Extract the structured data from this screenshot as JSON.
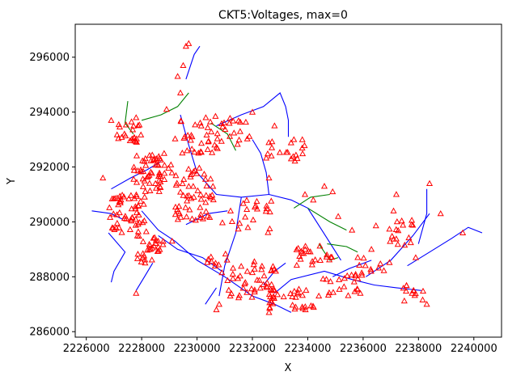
{
  "chart_data": {
    "type": "scatter",
    "title": "CKT5:Voltages, max=0",
    "xlabel": "X",
    "ylabel": "Y",
    "xlim": [
      2225600,
      2241000
    ],
    "ylim": [
      285800,
      297200
    ],
    "grid": false,
    "xticks": [
      {
        "value": 2226000,
        "label": "2226000"
      },
      {
        "value": 2228000,
        "label": "2228000"
      },
      {
        "value": 2230000,
        "label": "2230000"
      },
      {
        "value": 2232000,
        "label": "2232000"
      },
      {
        "value": 2234000,
        "label": "2234000"
      },
      {
        "value": 2236000,
        "label": "2236000"
      },
      {
        "value": 2238000,
        "label": "2238000"
      },
      {
        "value": 2240000,
        "label": "2240000"
      }
    ],
    "yticks": [
      {
        "value": 286000,
        "label": "286000"
      },
      {
        "value": 288000,
        "label": "288000"
      },
      {
        "value": 290000,
        "label": "290000"
      },
      {
        "value": 292000,
        "label": "292000"
      },
      {
        "value": 294000,
        "label": "294000"
      },
      {
        "value": 296000,
        "label": "296000"
      }
    ],
    "colors": {
      "feeder": "#0000ff",
      "lateral": "#008000",
      "marker": "#ff0000"
    },
    "lines": [
      {
        "series": "feeder",
        "points": [
          [
            2226900,
            291200
          ],
          [
            2227600,
            291600
          ],
          [
            2228200,
            291900
          ],
          [
            2228700,
            292200
          ]
        ]
      },
      {
        "series": "feeder",
        "points": [
          [
            2228000,
            290400
          ],
          [
            2228600,
            289700
          ],
          [
            2229200,
            289300
          ],
          [
            2230000,
            288600
          ],
          [
            2231000,
            288000
          ],
          [
            2232000,
            287300
          ],
          [
            2232800,
            287000
          ],
          [
            2233400,
            286700
          ]
        ]
      },
      {
        "series": "feeder",
        "points": [
          [
            2226200,
            290400
          ],
          [
            2226900,
            290300
          ],
          [
            2227300,
            290100
          ]
        ]
      },
      {
        "series": "feeder",
        "points": [
          [
            2226800,
            289600
          ],
          [
            2227400,
            288900
          ],
          [
            2227000,
            288200
          ],
          [
            2226900,
            287800
          ]
        ]
      },
      {
        "series": "feeder",
        "points": [
          [
            2229400,
            293900
          ],
          [
            2229700,
            292800
          ],
          [
            2230000,
            291800
          ],
          [
            2230700,
            291000
          ],
          [
            2231600,
            290900
          ],
          [
            2232600,
            291000
          ],
          [
            2233400,
            290800
          ],
          [
            2234000,
            290500
          ],
          [
            2234700,
            289400
          ],
          [
            2235200,
            288600
          ]
        ]
      },
      {
        "series": "feeder",
        "points": [
          [
            2229600,
            295200
          ],
          [
            2229900,
            296100
          ],
          [
            2230100,
            296400
          ]
        ]
      },
      {
        "series": "feeder",
        "points": [
          [
            2230700,
            293500
          ],
          [
            2231600,
            293900
          ],
          [
            2232400,
            294200
          ],
          [
            2233000,
            294700
          ],
          [
            2233200,
            294200
          ],
          [
            2233300,
            293700
          ],
          [
            2233300,
            293100
          ]
        ]
      },
      {
        "series": "feeder",
        "points": [
          [
            2232000,
            293000
          ],
          [
            2232300,
            292500
          ],
          [
            2232500,
            291800
          ],
          [
            2232600,
            291000
          ]
        ]
      },
      {
        "series": "feeder",
        "points": [
          [
            2231600,
            290900
          ],
          [
            2231400,
            289600
          ],
          [
            2231000,
            288400
          ],
          [
            2230800,
            287300
          ]
        ]
      },
      {
        "series": "feeder",
        "points": [
          [
            2232800,
            287400
          ],
          [
            2233400,
            287900
          ],
          [
            2234600,
            288200
          ],
          [
            2235600,
            287900
          ],
          [
            2236400,
            287700
          ],
          [
            2237200,
            287600
          ],
          [
            2238100,
            287500
          ]
        ]
      },
      {
        "series": "feeder",
        "points": [
          [
            2236100,
            288000
          ],
          [
            2237000,
            288600
          ],
          [
            2237800,
            289500
          ],
          [
            2238400,
            290300
          ]
        ]
      },
      {
        "series": "feeder",
        "points": [
          [
            2237600,
            288400
          ],
          [
            2238400,
            288900
          ],
          [
            2239200,
            289400
          ],
          [
            2239800,
            289800
          ],
          [
            2240300,
            289600
          ]
        ]
      },
      {
        "series": "feeder",
        "points": [
          [
            2238300,
            291200
          ],
          [
            2238300,
            290300
          ],
          [
            2238000,
            289200
          ]
        ]
      },
      {
        "series": "feeder",
        "points": [
          [
            2228600,
            289500
          ],
          [
            2229300,
            289000
          ],
          [
            2230200,
            288700
          ],
          [
            2230900,
            288200
          ]
        ]
      },
      {
        "series": "feeder",
        "points": [
          [
            2227800,
            287500
          ],
          [
            2228100,
            288000
          ],
          [
            2228400,
            288500
          ]
        ]
      },
      {
        "series": "feeder",
        "points": [
          [
            2229600,
            289900
          ],
          [
            2230400,
            290300
          ],
          [
            2231100,
            290400
          ]
        ]
      },
      {
        "series": "feeder",
        "points": [
          [
            2232400,
            287700
          ],
          [
            2232800,
            288200
          ],
          [
            2233200,
            288500
          ]
        ]
      },
      {
        "series": "feeder",
        "points": [
          [
            2234900,
            288000
          ],
          [
            2235500,
            288300
          ],
          [
            2236300,
            288600
          ]
        ]
      },
      {
        "series": "feeder",
        "points": [
          [
            2230300,
            287000
          ],
          [
            2230700,
            287600
          ]
        ]
      },
      {
        "series": "lateral",
        "points": [
          [
            2227500,
            294400
          ],
          [
            2227400,
            293600
          ],
          [
            2227700,
            293200
          ]
        ]
      },
      {
        "series": "lateral",
        "points": [
          [
            2228000,
            293700
          ],
          [
            2228700,
            293900
          ],
          [
            2229300,
            294200
          ],
          [
            2229700,
            294700
          ]
        ]
      },
      {
        "series": "lateral",
        "points": [
          [
            2233500,
            290500
          ],
          [
            2234100,
            290900
          ],
          [
            2234800,
            291000
          ]
        ]
      },
      {
        "series": "lateral",
        "points": [
          [
            2234000,
            290500
          ],
          [
            2234800,
            290000
          ],
          [
            2235400,
            289700
          ]
        ]
      },
      {
        "series": "lateral",
        "points": [
          [
            2234400,
            289200
          ],
          [
            2234800,
            288600
          ],
          [
            2235100,
            288700
          ]
        ]
      },
      {
        "series": "lateral",
        "points": [
          [
            2234700,
            289200
          ],
          [
            2235400,
            289100
          ],
          [
            2235800,
            288900
          ]
        ]
      },
      {
        "series": "lateral",
        "points": [
          [
            2230500,
            293600
          ],
          [
            2231100,
            293200
          ],
          [
            2231400,
            292600
          ]
        ]
      }
    ],
    "marker_clusters": [
      {
        "series": "marker",
        "center": [
          2227500,
          293200
        ],
        "spread": [
          500,
          450
        ],
        "count": 22
      },
      {
        "series": "marker",
        "center": [
          2228400,
          291800
        ],
        "spread": [
          700,
          700
        ],
        "count": 55
      },
      {
        "series": "marker",
        "center": [
          2227500,
          290300
        ],
        "spread": [
          700,
          700
        ],
        "count": 55
      },
      {
        "series": "marker",
        "center": [
          2228300,
          289000
        ],
        "spread": [
          500,
          500
        ],
        "count": 30
      },
      {
        "series": "marker",
        "center": [
          2229900,
          291000
        ],
        "spread": [
          700,
          1000
        ],
        "count": 55
      },
      {
        "series": "marker",
        "center": [
          2230000,
          293200
        ],
        "spread": [
          800,
          700
        ],
        "count": 35
      },
      {
        "series": "marker",
        "center": [
          2231400,
          293300
        ],
        "spread": [
          600,
          500
        ],
        "count": 18
      },
      {
        "series": "marker",
        "center": [
          2233100,
          292600
        ],
        "spread": [
          900,
          400
        ],
        "count": 18
      },
      {
        "series": "marker",
        "center": [
          2231800,
          290200
        ],
        "spread": [
          900,
          600
        ],
        "count": 22
      },
      {
        "series": "marker",
        "center": [
          2230700,
          288500
        ],
        "spread": [
          400,
          400
        ],
        "count": 10
      },
      {
        "series": "marker",
        "center": [
          2232000,
          287900
        ],
        "spread": [
          900,
          700
        ],
        "count": 45
      },
      {
        "series": "marker",
        "center": [
          2233500,
          287200
        ],
        "spread": [
          900,
          400
        ],
        "count": 30
      },
      {
        "series": "marker",
        "center": [
          2234200,
          288800
        ],
        "spread": [
          700,
          400
        ],
        "count": 22
      },
      {
        "series": "marker",
        "center": [
          2235200,
          287700
        ],
        "spread": [
          700,
          400
        ],
        "count": 18
      },
      {
        "series": "marker",
        "center": [
          2236400,
          288400
        ],
        "spread": [
          700,
          400
        ],
        "count": 14
      },
      {
        "series": "marker",
        "center": [
          2237100,
          289600
        ],
        "spread": [
          700,
          500
        ],
        "count": 18
      },
      {
        "series": "marker",
        "center": [
          2237800,
          287400
        ],
        "spread": [
          400,
          300
        ],
        "count": 12
      }
    ],
    "markers": [
      [
        2229600,
        296400
      ],
      [
        2229700,
        296500
      ],
      [
        2229500,
        295700
      ],
      [
        2229400,
        294700
      ],
      [
        2228900,
        294100
      ],
      [
        2232800,
        293500
      ],
      [
        2233500,
        293000
      ],
      [
        2234200,
        290800
      ],
      [
        2235100,
        290200
      ],
      [
        2235600,
        289700
      ],
      [
        2234600,
        291300
      ],
      [
        2238800,
        290300
      ],
      [
        2239600,
        289600
      ],
      [
        2238400,
        291400
      ],
      [
        2237200,
        291000
      ],
      [
        2237100,
        290400
      ],
      [
        2237900,
        288700
      ],
      [
        2236300,
        289000
      ],
      [
        2229100,
        289300
      ],
      [
        2227800,
        287400
      ],
      [
        2230800,
        287000
      ],
      [
        2231200,
        287300
      ],
      [
        2230700,
        286800
      ],
      [
        2232600,
        286700
      ],
      [
        2233800,
        286900
      ],
      [
        2234400,
        287300
      ],
      [
        2235900,
        287400
      ],
      [
        2238300,
        287000
      ],
      [
        2233400,
        292300
      ],
      [
        2232600,
        291600
      ],
      [
        2233900,
        291000
      ],
      [
        2234900,
        291100
      ],
      [
        2232000,
        294000
      ],
      [
        2229300,
        295300
      ],
      [
        2226900,
        293700
      ],
      [
        2227800,
        293800
      ],
      [
        2226600,
        291600
      ]
    ]
  }
}
